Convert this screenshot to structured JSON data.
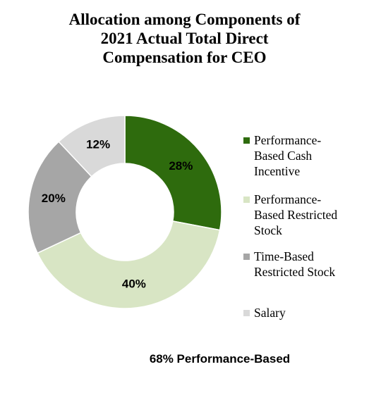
{
  "chart_data": {
    "type": "pie",
    "title_lines": [
      "Allocation among Components of",
      "2021 Actual Total Direct",
      "Compensation for CEO"
    ],
    "categories": [
      "Performance-Based Cash Incentive",
      "Performance-Based Restricted Stock",
      "Time-Based Restricted Stock",
      "Salary"
    ],
    "legend_lines": [
      [
        "Performance-",
        "Based Cash",
        "Incentive"
      ],
      [
        "Performance-",
        "Based Restricted",
        "Stock"
      ],
      [
        "Time-Based",
        "Restricted Stock"
      ],
      [
        "Salary"
      ]
    ],
    "values": [
      28,
      40,
      20,
      12
    ],
    "data_labels": [
      "28%",
      "40%",
      "20%",
      "12%"
    ],
    "colors": [
      "#2e6b0d",
      "#d8e5c4",
      "#a6a6a6",
      "#d9d9d9"
    ],
    "legend_position": "right",
    "footer": "68% Performance-Based"
  }
}
